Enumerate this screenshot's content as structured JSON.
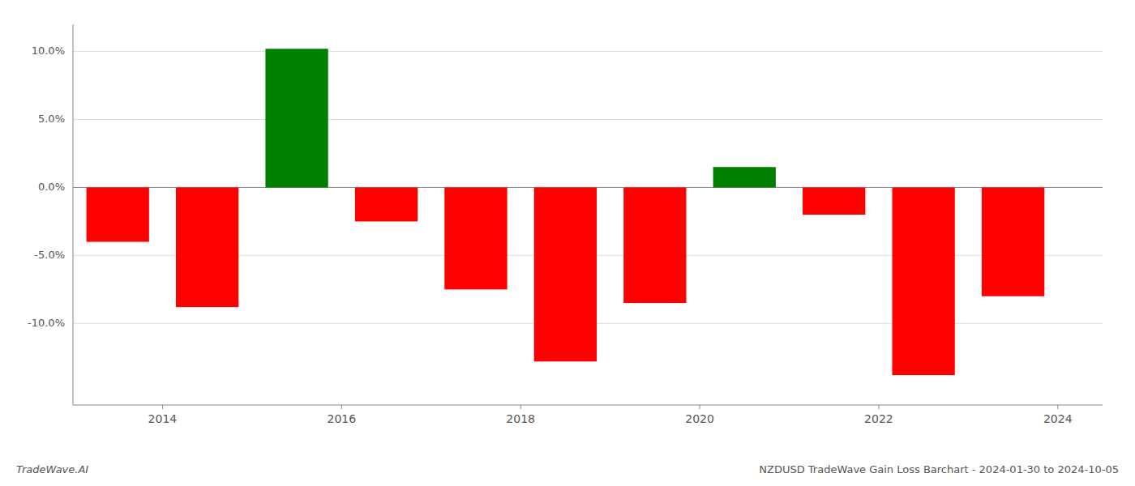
{
  "chart_data": {
    "type": "bar",
    "title": "NZDUSD TradeWave Gain Loss Barchart - 2024-01-30 to 2024-10-05",
    "annotations": [
      "TradeWave.AI"
    ],
    "x": [
      2013.5,
      2014.5,
      2015.5,
      2016.5,
      2017.5,
      2018.5,
      2019.5,
      2020.5,
      2021.5,
      2022.5,
      2023.5
    ],
    "values": [
      -4.0,
      -8.8,
      10.2,
      -2.5,
      -7.5,
      -12.8,
      -8.5,
      1.5,
      -2.0,
      -13.8,
      -8.0
    ],
    "colors": [
      "#ff0000",
      "#ff0000",
      "#008000",
      "#ff0000",
      "#ff0000",
      "#ff0000",
      "#ff0000",
      "#008000",
      "#ff0000",
      "#ff0000",
      "#ff0000"
    ],
    "xlim": [
      2013.0,
      2024.5
    ],
    "xticks": [
      2014,
      2016,
      2018,
      2020,
      2022,
      2024
    ],
    "ylim": [
      -16,
      12
    ],
    "yticks": [
      {
        "value": -10.0,
        "label": "-10.0%"
      },
      {
        "value": -5.0,
        "label": "-5.0%"
      },
      {
        "value": 0.0,
        "label": "0.0%"
      },
      {
        "value": 5.0,
        "label": "5.0%"
      },
      {
        "value": 10.0,
        "label": "10.0%"
      }
    ],
    "grid": true
  }
}
